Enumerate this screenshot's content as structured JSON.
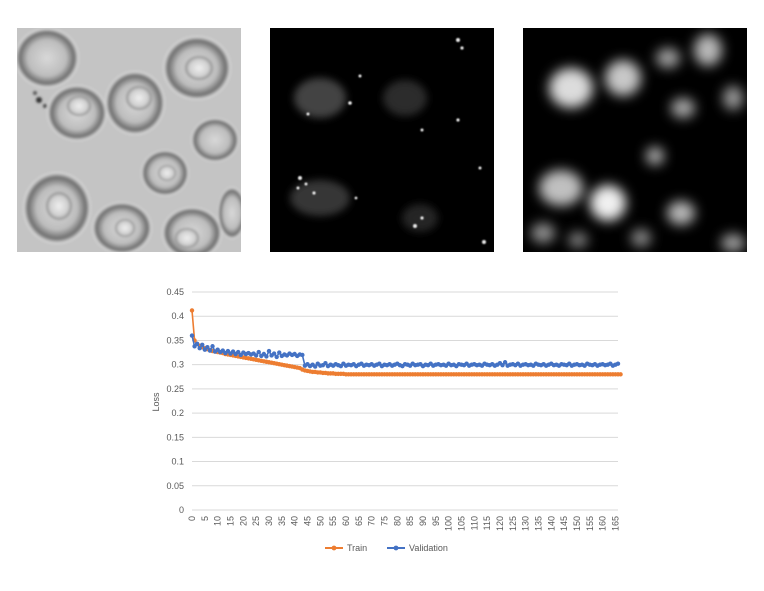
{
  "panels": [
    {
      "name": "brightfield-cell-image",
      "kind": "grayscale-brightfield"
    },
    {
      "name": "fluorescence-sparse-image",
      "kind": "dark-sparse-fluorescence"
    },
    {
      "name": "fluorescence-blurred-image",
      "kind": "dark-blurred-fluorescence"
    }
  ],
  "chart_data": {
    "type": "line",
    "title": "",
    "xlabel": "",
    "ylabel": "Loss",
    "xlim": [
      0,
      166
    ],
    "ylim": [
      0,
      0.45
    ],
    "yticks": [
      0,
      0.05,
      0.1,
      0.15,
      0.2,
      0.25,
      0.3,
      0.35,
      0.4,
      0.45
    ],
    "xtick_step": 5,
    "xtick_max": 165,
    "grid": "horizontal",
    "legend": "bottom-center",
    "series": [
      {
        "name": "Train",
        "color": "#ED7D31",
        "values": [
          0.412,
          0.35,
          0.343,
          0.339,
          0.336,
          0.334,
          0.332,
          0.33,
          0.328,
          0.327,
          0.326,
          0.325,
          0.324,
          0.322,
          0.321,
          0.32,
          0.319,
          0.318,
          0.317,
          0.316,
          0.315,
          0.314,
          0.313,
          0.312,
          0.311,
          0.31,
          0.309,
          0.308,
          0.307,
          0.306,
          0.305,
          0.304,
          0.303,
          0.302,
          0.301,
          0.3,
          0.299,
          0.298,
          0.297,
          0.296,
          0.295,
          0.294,
          0.293,
          0.29,
          0.288,
          0.287,
          0.286,
          0.285,
          0.285,
          0.284,
          0.284,
          0.283,
          0.283,
          0.282,
          0.282,
          0.282,
          0.281,
          0.281,
          0.281,
          0.281,
          0.28,
          0.28,
          0.28,
          0.28,
          0.28,
          0.28,
          0.28,
          0.28,
          0.28,
          0.28,
          0.28,
          0.28,
          0.28,
          0.28,
          0.28,
          0.28,
          0.28,
          0.28,
          0.28,
          0.28,
          0.28,
          0.28,
          0.28,
          0.28,
          0.28,
          0.28,
          0.28,
          0.28,
          0.28,
          0.28,
          0.28,
          0.28,
          0.28,
          0.28,
          0.28,
          0.28,
          0.28,
          0.28,
          0.28,
          0.28,
          0.28,
          0.28,
          0.28,
          0.28,
          0.28,
          0.28,
          0.28,
          0.28,
          0.28,
          0.28,
          0.28,
          0.28,
          0.28,
          0.28,
          0.28,
          0.28,
          0.28,
          0.28,
          0.28,
          0.28,
          0.28,
          0.28,
          0.28,
          0.28,
          0.28,
          0.28,
          0.28,
          0.28,
          0.28,
          0.28,
          0.28,
          0.28,
          0.28,
          0.28,
          0.28,
          0.28,
          0.28,
          0.28,
          0.28,
          0.28,
          0.28,
          0.28,
          0.28,
          0.28,
          0.28,
          0.28,
          0.28,
          0.28,
          0.28,
          0.28,
          0.28,
          0.28,
          0.28,
          0.28,
          0.28,
          0.28,
          0.28,
          0.28,
          0.28,
          0.28,
          0.28,
          0.28,
          0.28,
          0.28,
          0.28,
          0.28,
          0.28,
          0.28
        ]
      },
      {
        "name": "Validation",
        "color": "#4472C4",
        "values": [
          0.36,
          0.338,
          0.343,
          0.334,
          0.341,
          0.331,
          0.336,
          0.329,
          0.338,
          0.327,
          0.331,
          0.326,
          0.329,
          0.324,
          0.328,
          0.323,
          0.327,
          0.322,
          0.326,
          0.32,
          0.325,
          0.322,
          0.324,
          0.321,
          0.323,
          0.319,
          0.326,
          0.318,
          0.322,
          0.317,
          0.328,
          0.319,
          0.323,
          0.316,
          0.325,
          0.318,
          0.321,
          0.319,
          0.323,
          0.32,
          0.322,
          0.318,
          0.321,
          0.32,
          0.298,
          0.301,
          0.297,
          0.3,
          0.296,
          0.302,
          0.298,
          0.299,
          0.303,
          0.297,
          0.3,
          0.298,
          0.301,
          0.299,
          0.297,
          0.302,
          0.298,
          0.3,
          0.299,
          0.301,
          0.297,
          0.3,
          0.302,
          0.298,
          0.3,
          0.299,
          0.301,
          0.298,
          0.3,
          0.302,
          0.297,
          0.3,
          0.299,
          0.301,
          0.298,
          0.3,
          0.302,
          0.299,
          0.297,
          0.301,
          0.3,
          0.298,
          0.302,
          0.299,
          0.3,
          0.301,
          0.297,
          0.3,
          0.299,
          0.302,
          0.298,
          0.3,
          0.301,
          0.299,
          0.3,
          0.298,
          0.302,
          0.299,
          0.3,
          0.297,
          0.301,
          0.3,
          0.299,
          0.302,
          0.298,
          0.3,
          0.301,
          0.299,
          0.3,
          0.298,
          0.302,
          0.3,
          0.299,
          0.301,
          0.298,
          0.3,
          0.303,
          0.299,
          0.305,
          0.298,
          0.3,
          0.301,
          0.299,
          0.302,
          0.298,
          0.3,
          0.301,
          0.299,
          0.3,
          0.298,
          0.302,
          0.3,
          0.299,
          0.301,
          0.298,
          0.3,
          0.302,
          0.299,
          0.3,
          0.298,
          0.301,
          0.3,
          0.299,
          0.302,
          0.298,
          0.3,
          0.301,
          0.299,
          0.3,
          0.298,
          0.302,
          0.3,
          0.299,
          0.301,
          0.298,
          0.3,
          0.301,
          0.299,
          0.3,
          0.302,
          0.298,
          0.3,
          0.302
        ]
      }
    ]
  }
}
